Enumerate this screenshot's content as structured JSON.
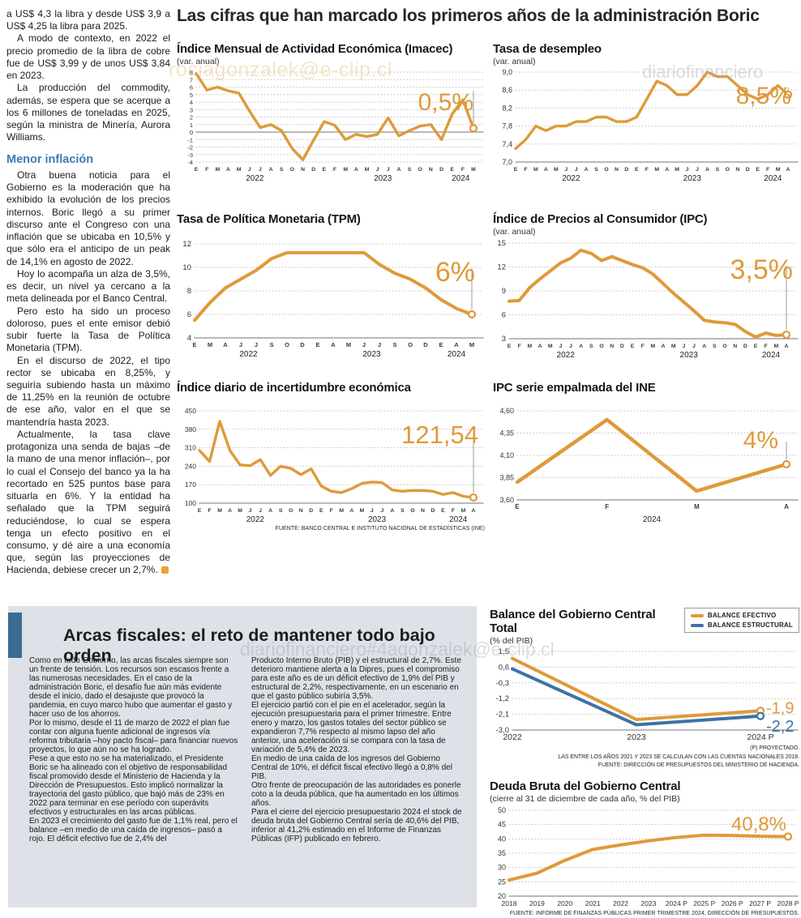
{
  "page": {
    "headline": "Las cifras que han marcado los primeros años de la administración Boric"
  },
  "watermarks": {
    "top_left_email": "rociagonzalek@e-clip.cl",
    "top_right_brand": "diariofinanciero",
    "bottom_brand_email": "diariofinanciero#4agonzalek@e-clip.cl"
  },
  "left_article": {
    "paragraphs_top": [
      "a US$ 4,3 la libra y desde US$ 3,9 a US$ 4,25 la libra para 2025.",
      "A modo de contexto, en 2022 el precio promedio de la libra de cobre fue de US$ 3,99 y de unos US$ 3,84 en 2023.",
      "La producción del commodity, además, se espera que se acerque a los 6 millones de toneladas en 2025, según la ministra de Minería, Aurora Williams."
    ],
    "heading": "Menor inflación",
    "paragraphs_bottom": [
      "Otra buena noticia para el Gobierno es la moderación que ha exhibido la evolución de los precios internos. Boric llegó a su primer discurso ante el Congreso con una inflación que se ubicaba en 10,5% y que sólo era el anticipo de un peak de 14,1% en agosto de 2022.",
      "Hoy lo acompaña un alza de 3,5%, es decir, un nivel ya cercano a la meta delineada por el Banco Central.",
      "Pero esto ha sido un proceso doloroso, pues el ente emisor debió subir fuerte la Tasa de Política Monetaria (TPM).",
      "En el discurso de 2022, el tipo rector se ubicaba en 8,25%, y seguiría subiendo hasta un máximo de 11,25% en la reunión de octubre de ese año, valor en el que se mantendría hasta 2023.",
      "Actualmente, la tasa clave protagoniza una senda de bajas –de la mano de una menor inflación–, por lo cual el Consejo del banco ya la ha recortado en 525 puntos base para situarla en 6%. Y la entidad ha señalado que la TPM seguirá reduciéndose, lo cual se espera tenga un efecto positivo en el consumo, y dé aire a una economía que, según las proyecciones de Hacienda, debiese crecer un 2,7%."
    ]
  },
  "arcas": {
    "title": "Arcas fiscales: el reto de mantener todo bajo orden",
    "col1": [
      "Como en todo Gobierno, las arcas fiscales siempre son un frente de tensión. Los recursos son escasos frente a las numerosas necesidades. En el caso de la administración Boric, el desafío fue aún más evidente desde el inicio, dado el desajuste que provocó la pandemia, en cuyo marco hubo que aumentar el gasto y hacer uso de los ahorros.",
      "Por lo mismo, desde el 11 de marzo de 2022 el plan fue contar con alguna fuente adicional de ingresos vía reforma tributaria –hoy pacto fiscal– para financiar nuevos proyectos, lo que aún no se ha logrado.",
      "Pese a que esto no se ha materializado, el Presidente Boric se ha alineado con el objetivo de responsabilidad fiscal promovido desde el Ministerio de Hacienda y la Dirección de Presupuestos. Esto implicó normalizar la trayectoria del gasto público, que bajó más de 23% en 2022 para terminar en ese período con superávits efectivos y estructurales en las arcas públicas.",
      "En 2023 el crecimiento del gasto fue de 1,1% real, pero el balance –en medio de una caída de ingresos–  pasó a rojo. El déficit efectivo fue de 2,4% del"
    ],
    "col2": [
      "Producto Interno Bruto (PIB) y el estructural de 2,7%. Este deterioro mantiene alerta a la Dipres, pues el compromiso para este año es de un déficit efectivo de 1,9% del PIB y estructural de 2,2%, respectivamente, en un escenario en que el gasto público subiría 3,5%.",
      "El ejercicio partió con el pie en el acelerador, según la ejecución presupuestaria para el primer trimestre. Entre enero y marzo, los gastos totales del sector público se expandieron 7,7% respecto al mismo lapso del año anterior, una aceleración si se compara con la tasa de variación de 5,4% de 2023.",
      "En medio de una caída de los ingresos del Gobierno Central de 10%, el déficit fiscal efectivo llegó a 0,8% del PIB.",
      "Otro frente de preocupación de las autoridades es ponerle coto a la deuda pública, que ha aumentado en los últimos años.",
      "Para el cierre del ejercicio presupuestario 2024 el stock de deuda bruta del Gobierno Central sería de 40,6% del PIB, inferior al 41,2% estimado en el Informe de Finanzas Públicas (IFP) publicado en febrero."
    ]
  },
  "colors": {
    "orange": "#de9a3a",
    "blue": "#3e72a4",
    "heading_blue": "#3d7ab8",
    "panel_gray": "#dee1e7",
    "accent_bar_blue": "#3c6b94"
  },
  "chart_data": [
    {
      "id": "imacec",
      "type": "line",
      "title": "Índice Mensual de Actividad Económica (Imacec)",
      "subtitle": "(var. anual)",
      "callout": "0,5%",
      "ylim": [
        -4,
        8
      ],
      "yticks": [
        {
          "label": "8",
          "v": 8
        },
        {
          "label": "7",
          "v": 7
        },
        {
          "label": "6",
          "v": 6
        },
        {
          "label": "5",
          "v": 5
        },
        {
          "label": "4",
          "v": 4
        },
        {
          "label": "3",
          "v": 3
        },
        {
          "label": "2",
          "v": 2
        },
        {
          "label": "1",
          "v": 1
        },
        {
          "label": "0",
          "v": 0,
          "solid": true
        },
        {
          "label": "-1",
          "v": -1
        },
        {
          "label": "-2",
          "v": -2
        },
        {
          "label": "-3",
          "v": -3
        },
        {
          "label": "-4",
          "v": -4
        }
      ],
      "x_style": "months",
      "x_labels": [
        "E",
        "F",
        "M",
        "A",
        "M",
        "J",
        "J",
        "A",
        "S",
        "O",
        "N",
        "D",
        "E",
        "F",
        "M",
        "A",
        "M",
        "J",
        "J",
        "A",
        "S",
        "O",
        "N",
        "D",
        "E",
        "F",
        "M"
      ],
      "year_labels": [
        {
          "label": "2022",
          "i": 5.5
        },
        {
          "label": "2023",
          "i": 17.5
        },
        {
          "label": "2024",
          "i": 24.8
        }
      ],
      "callout_line": true,
      "series": [
        {
          "color": "#de9a3a",
          "values": [
            7.8,
            5.6,
            6.0,
            5.5,
            5.2,
            2.8,
            0.6,
            1.0,
            0.2,
            -2.2,
            -3.7,
            -1.1,
            1.4,
            0.9,
            -1.0,
            -0.3,
            -0.6,
            -0.3,
            1.9,
            -0.5,
            0.2,
            0.8,
            1.0,
            -1.0,
            2.4,
            4.3,
            0.5
          ]
        }
      ]
    },
    {
      "id": "desempleo",
      "type": "line",
      "title": "Tasa de desempleo",
      "subtitle": "(var. anual)",
      "callout": "8,5%",
      "ylim": [
        7.0,
        9.0
      ],
      "yticks": [
        {
          "label": "9,0",
          "v": 9.0
        },
        {
          "label": "8,6",
          "v": 8.6
        },
        {
          "label": "8,2",
          "v": 8.2
        },
        {
          "label": "7,8",
          "v": 7.8
        },
        {
          "label": "7,4",
          "v": 7.4
        },
        {
          "label": "7,0",
          "v": 7.0,
          "solid": true
        }
      ],
      "x_style": "months",
      "x_labels": [
        "E",
        "F",
        "M",
        "A",
        "M",
        "J",
        "J",
        "A",
        "S",
        "O",
        "N",
        "D",
        "E",
        "F",
        "M",
        "A",
        "M",
        "J",
        "J",
        "A",
        "S",
        "O",
        "N",
        "D",
        "E",
        "F",
        "M",
        "A"
      ],
      "year_labels": [
        {
          "label": "2022",
          "i": 5.5
        },
        {
          "label": "2023",
          "i": 17.5
        },
        {
          "label": "2024",
          "i": 25.5
        }
      ],
      "callout_line": true,
      "series": [
        {
          "color": "#de9a3a",
          "values": [
            7.3,
            7.5,
            7.8,
            7.7,
            7.8,
            7.8,
            7.9,
            7.9,
            8.0,
            8.0,
            7.9,
            7.9,
            8.0,
            8.4,
            8.8,
            8.7,
            8.5,
            8.5,
            8.7,
            9.0,
            8.9,
            8.9,
            8.7,
            8.5,
            8.4,
            8.5,
            8.7,
            8.5
          ]
        }
      ]
    },
    {
      "id": "tpm",
      "type": "line",
      "title": "Tasa de Política Monetaria (TPM)",
      "subtitle": "",
      "callout": "6%",
      "ylim": [
        4,
        12
      ],
      "yticks": [
        {
          "label": "12",
          "v": 12
        },
        {
          "label": "10",
          "v": 10
        },
        {
          "label": "8",
          "v": 8
        },
        {
          "label": "6",
          "v": 6
        },
        {
          "label": "4",
          "v": 4,
          "solid": true
        }
      ],
      "x_style": "months",
      "x_labels": [
        "E",
        "M",
        "A",
        "J",
        "J",
        "S",
        "O",
        "D",
        "E",
        "A",
        "M",
        "J",
        "J",
        "S",
        "O",
        "D",
        "E",
        "A",
        "M"
      ],
      "year_labels": [
        {
          "label": "2022",
          "i": 3.5
        },
        {
          "label": "2023",
          "i": 11.5
        },
        {
          "label": "2024",
          "i": 17
        }
      ],
      "callout_line": true,
      "series": [
        {
          "color": "#de9a3a",
          "values": [
            5.5,
            7.0,
            8.25,
            9.0,
            9.75,
            10.75,
            11.25,
            11.25,
            11.25,
            11.25,
            11.25,
            11.25,
            10.25,
            9.5,
            9.0,
            8.25,
            7.25,
            6.5,
            6.0
          ]
        }
      ]
    },
    {
      "id": "ipc",
      "type": "line",
      "title": "Índice de Precios al Consumidor (IPC)",
      "subtitle": "(var. anual)",
      "callout": "3,5%",
      "ylim": [
        3,
        15
      ],
      "yticks": [
        {
          "label": "15",
          "v": 15
        },
        {
          "label": "12",
          "v": 12
        },
        {
          "label": "9",
          "v": 9
        },
        {
          "label": "6",
          "v": 6
        },
        {
          "label": "3",
          "v": 3,
          "solid": true
        }
      ],
      "x_style": "months",
      "x_labels": [
        "E",
        "F",
        "M",
        "A",
        "M",
        "J",
        "J",
        "A",
        "S",
        "O",
        "N",
        "D",
        "E",
        "F",
        "M",
        "A",
        "M",
        "J",
        "J",
        "A",
        "S",
        "O",
        "N",
        "D",
        "E",
        "F",
        "M",
        "A"
      ],
      "year_labels": [
        {
          "label": "2022",
          "i": 5.5
        },
        {
          "label": "2023",
          "i": 17.5
        },
        {
          "label": "2024",
          "i": 25.5
        }
      ],
      "callout_line": true,
      "series": [
        {
          "color": "#de9a3a",
          "values": [
            7.7,
            7.8,
            9.4,
            10.5,
            11.5,
            12.5,
            13.1,
            14.1,
            13.7,
            12.8,
            13.3,
            12.8,
            12.3,
            11.9,
            11.1,
            9.9,
            8.7,
            7.6,
            6.5,
            5.3,
            5.1,
            5.0,
            4.8,
            3.9,
            3.2,
            3.7,
            3.4,
            3.5
          ]
        }
      ]
    },
    {
      "id": "incertidumbre",
      "type": "line",
      "title": "Índice diario de incertidumbre económica",
      "subtitle": "",
      "callout": "121,54",
      "ylim": [
        100,
        450
      ],
      "yticks": [
        {
          "label": "450",
          "v": 450
        },
        {
          "label": "380",
          "v": 380
        },
        {
          "label": "310",
          "v": 310
        },
        {
          "label": "240",
          "v": 240
        },
        {
          "label": "170",
          "v": 170
        },
        {
          "label": "100",
          "v": 100,
          "solid": true
        }
      ],
      "x_style": "months",
      "x_labels": [
        "E",
        "F",
        "M",
        "A",
        "M",
        "J",
        "J",
        "A",
        "S",
        "O",
        "N",
        "D",
        "E",
        "F",
        "M",
        "A",
        "M",
        "J",
        "J",
        "A",
        "S",
        "O",
        "N",
        "D",
        "E",
        "F",
        "M",
        "A"
      ],
      "year_labels": [
        {
          "label": "2022",
          "i": 5.5
        },
        {
          "label": "2023",
          "i": 17.5
        },
        {
          "label": "2024",
          "i": 25.5
        }
      ],
      "callout_line": true,
      "source": "FUENTE: BANCO CENTRAL E INSTITUTO NACIONAL DE ESTADÍSTICAS (INE)",
      "series": [
        {
          "color": "#de9a3a",
          "values": [
            300,
            258,
            410,
            300,
            245,
            242,
            265,
            205,
            240,
            232,
            208,
            230,
            165,
            145,
            140,
            155,
            175,
            180,
            178,
            150,
            145,
            148,
            148,
            145,
            133,
            140,
            126,
            121.54
          ]
        }
      ]
    },
    {
      "id": "ipc_empalmada",
      "type": "line",
      "title": "IPC serie empalmada del INE",
      "subtitle": "",
      "callout": "4%",
      "ylim": [
        3.6,
        4.6
      ],
      "yticks": [
        {
          "label": "4,60",
          "v": 4.6
        },
        {
          "label": "4,35",
          "v": 4.35
        },
        {
          "label": "4,10",
          "v": 4.1
        },
        {
          "label": "3,85",
          "v": 3.85
        },
        {
          "label": "3,60",
          "v": 3.6,
          "solid": true
        }
      ],
      "x_style": "months",
      "x_labels": [
        "E",
        "F",
        "M",
        "A"
      ],
      "year_labels": [
        {
          "label": "2024",
          "i": 1.5
        }
      ],
      "callout_line": true,
      "series": [
        {
          "color": "#de9a3a",
          "values": [
            3.8,
            4.5,
            3.7,
            4.0
          ]
        }
      ]
    },
    {
      "id": "balance",
      "type": "line",
      "title": "Balance del Gobierno Central Total",
      "subtitle": "(% del PIB)",
      "ylim": [
        -3.0,
        1.5
      ],
      "yticks": [
        {
          "label": "1,5",
          "v": 1.5
        },
        {
          "label": "0,6",
          "v": 0.6
        },
        {
          "label": "-0,3",
          "v": -0.3
        },
        {
          "label": "-1,2",
          "v": -1.2
        },
        {
          "label": "-2,1",
          "v": -2.1
        },
        {
          "label": "-3,0",
          "v": -3.0,
          "solid": true
        }
      ],
      "x_style": "years",
      "x_labels": [
        "2022",
        "2023",
        "2024 P"
      ],
      "legend_position": "top-right",
      "notes": [
        "(P) PROYECTADO.",
        "LAS ENTRE LOS AÑOS 2021 Y 2023 SE CALCULAN  CON LAS CUENTAS NACIONALES 2018.",
        "FUENTE: DIRECCIÓN DE PRESUPUESTOS DEL MINISTERIO DE HACIENDA."
      ],
      "series": [
        {
          "name": "BALANCE EFECTIVO",
          "color": "#de9a3a",
          "values": [
            1.1,
            -2.4,
            -1.9
          ],
          "end_label": "-1,9"
        },
        {
          "name": "BALANCE ESTRUCTURAL",
          "color": "#3e72a4",
          "values": [
            0.5,
            -2.7,
            -2.2
          ],
          "end_label": "-2,2"
        }
      ]
    },
    {
      "id": "deuda",
      "type": "line",
      "title": "Deuda Bruta del Gobierno Central",
      "subtitle": "(cierre al 31 de diciembre de cada año, % del PIB)",
      "callout": "40,8%",
      "ylim": [
        20,
        50
      ],
      "yticks": [
        {
          "label": "50",
          "v": 50
        },
        {
          "label": "45",
          "v": 45
        },
        {
          "label": "40",
          "v": 40
        },
        {
          "label": "35",
          "v": 35
        },
        {
          "label": "30",
          "v": 30
        },
        {
          "label": "25",
          "v": 25
        },
        {
          "label": "20",
          "v": 20,
          "solid": true
        }
      ],
      "x_style": "years",
      "x_labels": [
        "2018",
        "2019",
        "2020",
        "2021",
        "2022",
        "2023",
        "2024 P",
        "2025 P",
        "2026 P",
        "2027 P",
        "2028 P"
      ],
      "callout_line": false,
      "source": "FUENTE: INFORME DE FINANZAS PÚBLICAS PRIMER TRIMESTRE 2024, DIRECCIÓN DE PRESUPUESTOS.",
      "series": [
        {
          "color": "#de9a3a",
          "values": [
            25.6,
            28.0,
            32.5,
            36.3,
            37.9,
            39.3,
            40.5,
            41.3,
            41.2,
            40.9,
            40.8
          ]
        }
      ]
    }
  ]
}
